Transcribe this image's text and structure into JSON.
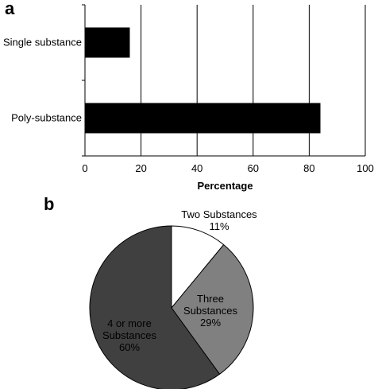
{
  "panel_labels": {
    "a": "a",
    "b": "b"
  },
  "chart_data": [
    {
      "type": "bar",
      "orientation": "horizontal",
      "title": "",
      "categories": [
        "Single substance",
        "Poly-substance"
      ],
      "values": [
        16,
        84
      ],
      "xlabel": "Percentage",
      "ylabel": "",
      "xlim": [
        0,
        100
      ],
      "xticks": [
        "0",
        "20",
        "40",
        "60",
        "80",
        "100"
      ],
      "grid": true,
      "bar_color": "#000000"
    },
    {
      "type": "pie",
      "title": "",
      "slices": [
        {
          "label_lines": [
            "Two Substances",
            "11%"
          ],
          "value": 11,
          "color": "#ffffff"
        },
        {
          "label_lines": [
            "Three",
            "Substances",
            "29%"
          ],
          "value": 29,
          "color": "#808080"
        },
        {
          "label_lines": [
            "4 or more",
            "Substances",
            "60%"
          ],
          "value": 60,
          "color": "#404040"
        }
      ],
      "legend": "none"
    }
  ]
}
